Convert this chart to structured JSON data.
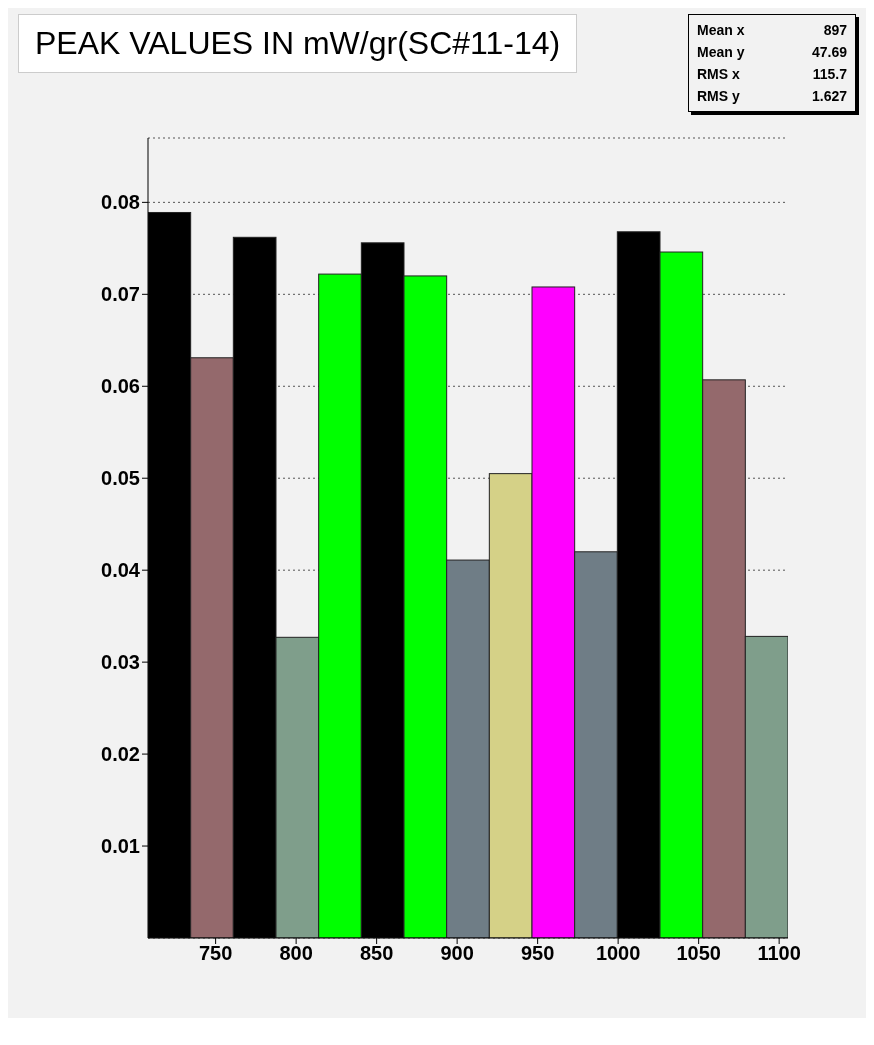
{
  "chart_data": {
    "type": "histogram",
    "title": "PEAK VALUES IN mW/gr(SC#11-14)",
    "bins": [
      708,
      734.5,
      761,
      787.5,
      814,
      840.5,
      867,
      893.5,
      920,
      946.5,
      973,
      999.5,
      1026,
      1052.5,
      1079,
      1105.5
    ],
    "values": [
      0.0789,
      0.0631,
      0.0762,
      0.0327,
      0.0722,
      0.0756,
      0.072,
      0.0411,
      0.0505,
      0.0708,
      0.042,
      0.0768,
      0.0746,
      0.0607,
      0.0328
    ],
    "colors": [
      "#000000",
      "#94696c",
      "#000000",
      "#7f9e8b",
      "#00ff00",
      "#000000",
      "#00ff00",
      "#6f7d86",
      "#d5d187",
      "#ff00ff",
      "#6f7d86",
      "#000000",
      "#00ff00",
      "#94696c",
      "#7f9e8b"
    ],
    "xlim": [
      708,
      1105.5
    ],
    "xticks": [
      750,
      800,
      850,
      900,
      950,
      1000,
      1050,
      1100
    ],
    "ylim": [
      0,
      0.087
    ],
    "yticks": [
      0.01,
      0.02,
      0.03,
      0.04,
      0.05,
      0.06,
      0.07,
      0.08
    ],
    "grid": "y",
    "annotations": [
      "Mean x",
      "897",
      "Mean y",
      "47.69",
      "RMS x",
      "115.7",
      "RMS y",
      "1.627"
    ]
  }
}
